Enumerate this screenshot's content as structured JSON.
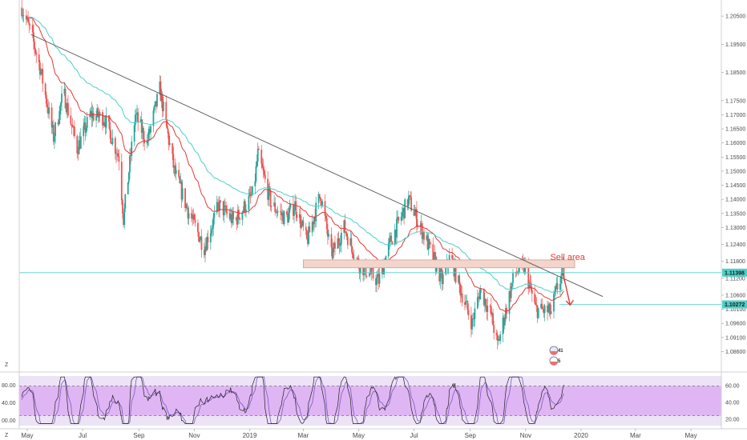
{
  "chart_data": {
    "type": "candlestick",
    "price_panel": {
      "y_ticks": [
        "1.20500",
        "1.19500",
        "1.18500",
        "1.17500",
        "1.17000",
        "1.16500",
        "1.16000",
        "1.15500",
        "1.15000",
        "1.14500",
        "1.14000",
        "1.13500",
        "1.13000",
        "1.12400",
        "1.11800",
        "1.11200",
        "1.10600",
        "1.10100",
        "1.09600",
        "1.09100",
        "1.08600"
      ],
      "ylim": [
        1.083,
        1.209
      ],
      "current_price": "1.11398",
      "support_price": "1.10272",
      "current_price_value": 1.11398,
      "support_price_value": 1.10272,
      "trendline": {
        "from": [
          "2018-05-05",
          1.1985
        ],
        "to": [
          "2020-01-25",
          1.1055
        ]
      },
      "sell_zone": {
        "from": "2019-03-01",
        "to": "2019-12-25",
        "low": 1.1157,
        "high": 1.1185
      },
      "annotation": "Sell area",
      "arrow": {
        "from": [
          "2019-12-12",
          1.1138
        ],
        "to": [
          "2019-12-20",
          1.1025
        ]
      },
      "price_path": [
        [
          "2018-04-25",
          1.208
        ],
        [
          "2018-05-05",
          1.199
        ],
        [
          "2018-05-15",
          1.187
        ],
        [
          "2018-05-30",
          1.162
        ],
        [
          "2018-06-10",
          1.178
        ],
        [
          "2018-06-25",
          1.158
        ],
        [
          "2018-07-10",
          1.17
        ],
        [
          "2018-07-25",
          1.169
        ],
        [
          "2018-08-10",
          1.155
        ],
        [
          "2018-08-15",
          1.133
        ],
        [
          "2018-08-28",
          1.17
        ],
        [
          "2018-09-10",
          1.16
        ],
        [
          "2018-09-24",
          1.179
        ],
        [
          "2018-10-10",
          1.15
        ],
        [
          "2018-10-25",
          1.136
        ],
        [
          "2018-11-12",
          1.123
        ],
        [
          "2018-11-28",
          1.138
        ],
        [
          "2018-12-15",
          1.132
        ],
        [
          "2019-01-05",
          1.142
        ],
        [
          "2019-01-10",
          1.156
        ],
        [
          "2019-01-25",
          1.138
        ],
        [
          "2019-02-10",
          1.133
        ],
        [
          "2019-02-20",
          1.138
        ],
        [
          "2019-03-05",
          1.125
        ],
        [
          "2019-03-20",
          1.142
        ],
        [
          "2019-04-01",
          1.12
        ],
        [
          "2019-04-15",
          1.13
        ],
        [
          "2019-05-01",
          1.117
        ],
        [
          "2019-05-23",
          1.111
        ],
        [
          "2019-06-05",
          1.125
        ],
        [
          "2019-06-25",
          1.14
        ],
        [
          "2019-07-15",
          1.125
        ],
        [
          "2019-08-01",
          1.111
        ],
        [
          "2019-08-10",
          1.12
        ],
        [
          "2019-08-20",
          1.109
        ],
        [
          "2019-09-03",
          1.096
        ],
        [
          "2019-09-12",
          1.108
        ],
        [
          "2019-09-24",
          1.099
        ],
        [
          "2019-10-01",
          1.088
        ],
        [
          "2019-10-20",
          1.114
        ],
        [
          "2019-10-31",
          1.116
        ],
        [
          "2019-11-12",
          1.101
        ],
        [
          "2019-11-29",
          1.1
        ],
        [
          "2019-12-05",
          1.108
        ],
        [
          "2019-12-12",
          1.114
        ]
      ]
    },
    "rsi_panel": {
      "y_ticks": [
        "60.00",
        "40.00",
        "20.00"
      ],
      "left_ticks": [
        "80.00",
        "40.00",
        "00.00"
      ],
      "ylim": [
        0,
        100
      ],
      "overbought": 80,
      "oversold": 20,
      "last_value": 82
    },
    "x_ticks": [
      {
        "label": "May",
        "date": "2018-05-01"
      },
      {
        "label": "Jul",
        "date": "2018-07-01"
      },
      {
        "label": "Sep",
        "date": "2018-09-01"
      },
      {
        "label": "Nov",
        "date": "2018-11-01"
      },
      {
        "label": "2019",
        "date": "2019-01-01"
      },
      {
        "label": "Mar",
        "date": "2019-03-01"
      },
      {
        "label": "May",
        "date": "2019-05-01"
      },
      {
        "label": "Jul",
        "date": "2019-07-01"
      },
      {
        "label": "Sep",
        "date": "2019-09-01"
      },
      {
        "label": "Nov",
        "date": "2019-11-01"
      },
      {
        "label": "2020",
        "date": "2020-01-01"
      },
      {
        "label": "Mar",
        "date": "2020-03-01"
      },
      {
        "label": "May",
        "date": "2020-05-01"
      }
    ],
    "events": [
      {
        "label": "41"
      },
      {
        "label": "5"
      }
    ],
    "axis_corner_labels": [
      "Z",
      "Z"
    ],
    "colors": {
      "up": "#26a69a",
      "down": "#ef5350",
      "ma_fast": "#e53935",
      "ma_slow": "#4dd0c8",
      "trendline": "#555555",
      "rsi_fill": "#d9a7f2",
      "rsi_line": "#222222",
      "rsi_signal": "#7e57c2",
      "sell_zone_fill": "#f3d5cc",
      "annotation": "#e53935",
      "price_tag": "#4dd0c8"
    }
  }
}
